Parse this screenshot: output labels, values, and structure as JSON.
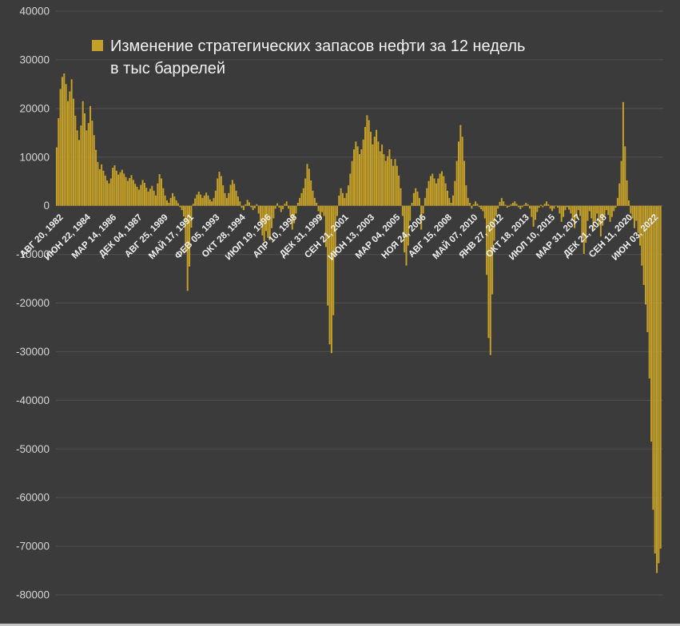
{
  "chart_data": {
    "type": "bar",
    "title": "",
    "legend": "Изменение стратегических запасов нефти за 12 недель в тыс баррелей",
    "legend_lines": [
      "Изменение стратегических запасов нефти за 12 недель",
      "в тыс баррелей"
    ],
    "legend_position": "top-left-inside",
    "grid": true,
    "ylabel": "",
    "xlabel": "",
    "ylim": [
      -80000,
      40000
    ],
    "ytick_step": 10000,
    "colors": {
      "bar": "#c5a028",
      "background": "#3b3b3b",
      "gridline": "#4f4f4f",
      "y_label_text": "#d6d6d6",
      "x_label_text": "#f0f0f0"
    },
    "x_domain_years": [
      1982.45,
      2023.05
    ],
    "x_ticks": [
      {
        "label": "АВГ 20, 1982",
        "t": 1982.64
      },
      {
        "label": "ИЮН 22, 1984",
        "t": 1984.47
      },
      {
        "label": "МАР 14, 1986",
        "t": 1986.2
      },
      {
        "label": "ДЕК 04, 1987",
        "t": 1987.92
      },
      {
        "label": "АВГ 25, 1989",
        "t": 1989.65
      },
      {
        "label": "МАЙ 17, 1991",
        "t": 1991.37
      },
      {
        "label": "ФЕВ 05, 1993",
        "t": 1993.1
      },
      {
        "label": "ОКТ 28, 1994",
        "t": 1994.82
      },
      {
        "label": "ИЮЛ 19, 1996",
        "t": 1996.55
      },
      {
        "label": "АПР 10, 1998",
        "t": 1998.27
      },
      {
        "label": "ДЕК 31, 1999",
        "t": 2000.0
      },
      {
        "label": "СЕН 21, 2001",
        "t": 2001.72
      },
      {
        "label": "ИЮН 13, 2003",
        "t": 2003.45
      },
      {
        "label": "МАР 04, 2005",
        "t": 2005.17
      },
      {
        "label": "НОЯ 24, 2006",
        "t": 2006.9
      },
      {
        "label": "АВГ 15, 2008",
        "t": 2008.62
      },
      {
        "label": "МАЙ 07, 2010",
        "t": 2010.35
      },
      {
        "label": "ЯНВ 27, 2012",
        "t": 2012.07
      },
      {
        "label": "ОКТ 18, 2013",
        "t": 2013.8
      },
      {
        "label": "ИЮЛ 10, 2015",
        "t": 2015.52
      },
      {
        "label": "МАР 31, 2017",
        "t": 2017.25
      },
      {
        "label": "ДЕК 21, 2018",
        "t": 2018.97
      },
      {
        "label": "СЕН 11, 2020",
        "t": 2020.7
      },
      {
        "label": "ИЮН 03, 2022",
        "t": 2022.42
      }
    ],
    "series": [
      {
        "name": "Изменение стратегических запасов нефти за 12 недель в тыс баррелей",
        "t0": 1982.5,
        "dt": 0.125,
        "values": [
          12000,
          18000,
          24000,
          26500,
          27200,
          25000,
          21500,
          23500,
          26000,
          22000,
          18500,
          15500,
          13500,
          16500,
          21500,
          19000,
          15500,
          17000,
          20500,
          17500,
          14500,
          11500,
          9000,
          7500,
          8500,
          7200,
          6200,
          5200,
          4600,
          5600,
          7800,
          8300,
          7200,
          6400,
          6900,
          7400,
          6600,
          5900,
          5100,
          5700,
          6300,
          5300,
          4500,
          3900,
          3300,
          4300,
          5300,
          4700,
          3700,
          2900,
          3500,
          4100,
          3100,
          2100,
          4600,
          6500,
          5600,
          3600,
          2100,
          1100,
          600,
          1600,
          2600,
          1900,
          1100,
          500,
          -300,
          -900,
          -2200,
          -9500,
          -17500,
          -12500,
          -4500,
          400,
          1500,
          2300,
          2900,
          2300,
          1600,
          2100,
          2700,
          2100,
          1300,
          900,
          1600,
          3100,
          5600,
          7000,
          6100,
          4200,
          2600,
          1600,
          2600,
          4300,
          5300,
          4500,
          3100,
          1900,
          900,
          -400,
          -900,
          300,
          1200,
          700,
          -300,
          -900,
          -500,
          300,
          -1600,
          -3600,
          -6100,
          -7300,
          -5200,
          -6600,
          -7100,
          -4600,
          -2600,
          -600,
          500,
          -400,
          -1300,
          -700,
          400,
          900,
          -600,
          -2100,
          -4900,
          -3600,
          -1600,
          600,
          1600,
          2600,
          3600,
          5600,
          8600,
          7600,
          5200,
          3100,
          1600,
          600,
          -1100,
          -2600,
          -1300,
          -2100,
          -8500,
          -20500,
          -28500,
          -30300,
          -22500,
          -10500,
          -2100,
          2100,
          3600,
          2600,
          1600,
          2600,
          4200,
          6600,
          9200,
          11600,
          13200,
          12200,
          10600,
          11600,
          13600,
          16200,
          18600,
          17600,
          15200,
          12600,
          14200,
          15600,
          13200,
          11200,
          12600,
          10600,
          9200,
          10200,
          11600,
          9600,
          8200,
          9600,
          8200,
          6200,
          3600,
          -2100,
          -9600,
          -12300,
          -8200,
          -3100,
          600,
          2600,
          3600,
          2900,
          1600,
          -4900,
          -1600,
          1600,
          3600,
          5100,
          6100,
          6600,
          5600,
          4600,
          5600,
          6600,
          7100,
          6100,
          4600,
          3100,
          1600,
          600,
          2100,
          5100,
          9200,
          13200,
          16600,
          14200,
          9200,
          4200,
          1600,
          600,
          -600,
          300,
          900,
          400,
          -300,
          -700,
          -1100,
          -2600,
          -14200,
          -27200,
          -30700,
          -18200,
          -7200,
          -2100,
          -600,
          800,
          1600,
          900,
          200,
          -400,
          -200,
          300,
          600,
          900,
          400,
          -300,
          -700,
          -300,
          200,
          600,
          300,
          -600,
          -2300,
          -4300,
          -2900,
          -1300,
          -400,
          200,
          -300,
          400,
          900,
          300,
          -600,
          -1100,
          -600,
          -100,
          -400,
          -1600,
          -3300,
          -2300,
          -900,
          -300,
          -800,
          -1600,
          -2600,
          -4600,
          -2600,
          -900,
          -2100,
          -6600,
          -9900,
          -7600,
          -3100,
          -1100,
          -2600,
          -4900,
          -3300,
          -1600,
          -4100,
          -6300,
          -4100,
          -2100,
          -900,
          -1900,
          -3300,
          -2300,
          -1100,
          -400,
          1600,
          4600,
          9200,
          21300,
          12200,
          5200,
          1100,
          -1600,
          -2600,
          -4600,
          -3100,
          -5600,
          -8200,
          -12300,
          -16300,
          -20300,
          -26000,
          -35500,
          -48500,
          -62500,
          -71500,
          -75500,
          -73500,
          -70500
        ]
      }
    ]
  }
}
